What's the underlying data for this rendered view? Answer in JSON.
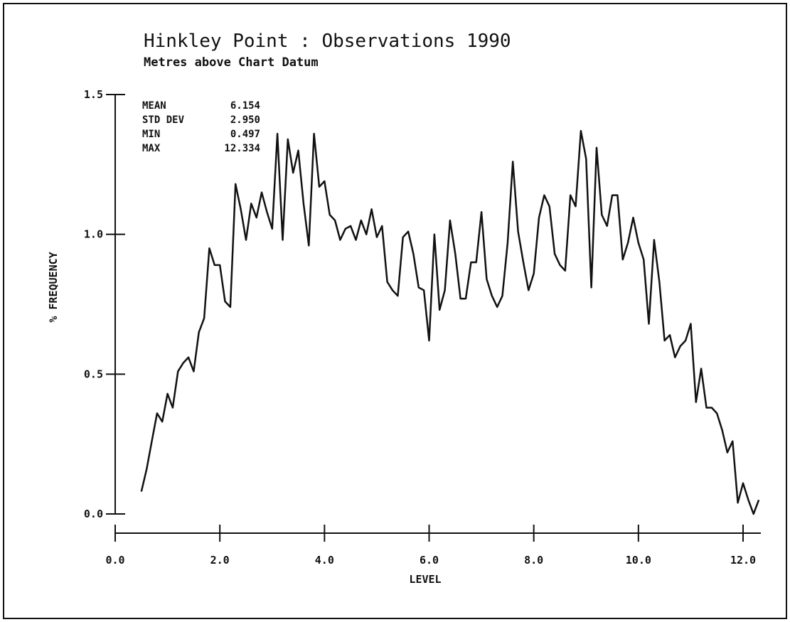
{
  "chart_data": {
    "type": "line",
    "title": "Hinkley Point : Observations 1990",
    "subtitle": "Metres above Chart Datum",
    "xlabel": "LEVEL",
    "ylabel": "% FREQUENCY",
    "xlim": [
      0.0,
      12.5
    ],
    "ylim": [
      0.0,
      1.5
    ],
    "x_ticks": [
      "0.0",
      "2.0",
      "4.0",
      "6.0",
      "8.0",
      "10.0",
      "12.0"
    ],
    "y_ticks": [
      "0.0",
      "0.5",
      "1.0",
      "1.5"
    ],
    "grid": false,
    "stats": [
      {
        "label": "MEAN",
        "value": "6.154"
      },
      {
        "label": "STD DEV",
        "value": "2.950"
      },
      {
        "label": "MIN",
        "value": "0.497"
      },
      {
        "label": "MAX",
        "value": "12.334"
      }
    ],
    "series": [
      {
        "x": [
          0.5,
          0.6,
          0.7,
          0.8,
          0.9,
          1.0,
          1.1,
          1.2,
          1.3,
          1.4,
          1.5,
          1.6,
          1.7,
          1.8,
          1.9,
          2.0,
          2.1,
          2.2,
          2.3,
          2.4,
          2.5,
          2.6,
          2.7,
          2.8,
          2.9,
          3.0,
          3.1,
          3.2,
          3.3,
          3.4,
          3.5,
          3.6,
          3.7,
          3.8,
          3.9,
          4.0,
          4.1,
          4.2,
          4.3,
          4.4,
          4.5,
          4.6,
          4.7,
          4.8,
          4.9,
          5.0,
          5.1,
          5.2,
          5.3,
          5.4,
          5.5,
          5.6,
          5.7,
          5.8,
          5.9,
          6.0,
          6.1,
          6.2,
          6.3,
          6.4,
          6.5,
          6.6,
          6.7,
          6.8,
          6.9,
          7.0,
          7.1,
          7.2,
          7.3,
          7.4,
          7.5,
          7.6,
          7.7,
          7.8,
          7.9,
          8.0,
          8.1,
          8.2,
          8.3,
          8.4,
          8.5,
          8.6,
          8.7,
          8.8,
          8.9,
          9.0,
          9.1,
          9.2,
          9.3,
          9.4,
          9.5,
          9.6,
          9.7,
          9.8,
          9.9,
          10.0,
          10.1,
          10.2,
          10.3,
          10.4,
          10.5,
          10.6,
          10.7,
          10.8,
          10.9,
          11.0,
          11.1,
          11.2,
          11.3,
          11.4,
          11.5,
          11.6,
          11.7,
          11.8,
          11.9,
          12.0,
          12.1,
          12.2,
          12.3
        ],
        "y": [
          0.08,
          0.16,
          0.26,
          0.36,
          0.33,
          0.43,
          0.38,
          0.51,
          0.54,
          0.56,
          0.51,
          0.65,
          0.7,
          0.95,
          0.89,
          0.89,
          0.76,
          0.74,
          1.18,
          1.09,
          0.98,
          1.11,
          1.06,
          1.15,
          1.08,
          1.02,
          1.36,
          0.98,
          1.34,
          1.22,
          1.3,
          1.11,
          0.96,
          1.36,
          1.17,
          1.19,
          1.07,
          1.05,
          0.98,
          1.02,
          1.03,
          0.98,
          1.05,
          1.0,
          1.09,
          0.99,
          1.03,
          0.83,
          0.8,
          0.78,
          0.99,
          1.01,
          0.93,
          0.81,
          0.8,
          0.62,
          1.0,
          0.73,
          0.8,
          1.05,
          0.93,
          0.77,
          0.77,
          0.9,
          0.9,
          1.08,
          0.84,
          0.78,
          0.74,
          0.78,
          0.97,
          1.26,
          1.01,
          0.9,
          0.8,
          0.86,
          1.06,
          1.14,
          1.1,
          0.93,
          0.89,
          0.87,
          1.14,
          1.1,
          1.37,
          1.27,
          0.81,
          1.31,
          1.07,
          1.03,
          1.14,
          1.14,
          0.91,
          0.97,
          1.06,
          0.97,
          0.91,
          0.68,
          0.98,
          0.83,
          0.62,
          0.64,
          0.56,
          0.6,
          0.62,
          0.68,
          0.4,
          0.52,
          0.38,
          0.38,
          0.36,
          0.3,
          0.22,
          0.26,
          0.04,
          0.11,
          0.05,
          0.0,
          0.05
        ]
      }
    ]
  }
}
